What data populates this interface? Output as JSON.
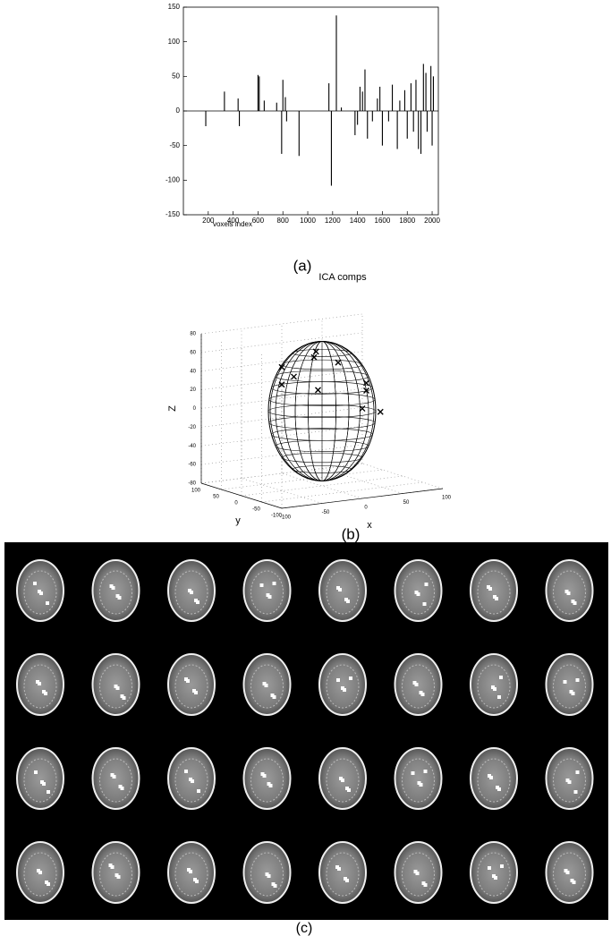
{
  "chart_data": [
    {
      "type": "stem",
      "caption": "(a)",
      "x_label": "voxels index",
      "color": "#000000",
      "x": [
        180,
        330,
        440,
        450,
        600,
        610,
        650,
        750,
        790,
        800,
        820,
        830,
        930,
        1170,
        1190,
        1230,
        1270,
        1380,
        1400,
        1420,
        1440,
        1460,
        1480,
        1520,
        1560,
        1580,
        1600,
        1650,
        1680,
        1720,
        1740,
        1780,
        1800,
        1830,
        1850,
        1870,
        1890,
        1910,
        1930,
        1950,
        1960,
        1990,
        2000,
        2010
      ],
      "values": [
        -22,
        28,
        18,
        -22,
        52,
        50,
        15,
        12,
        -62,
        45,
        20,
        -15,
        -65,
        40,
        -108,
        138,
        5,
        -35,
        -20,
        35,
        28,
        60,
        -40,
        -15,
        18,
        35,
        -50,
        -15,
        38,
        -55,
        15,
        30,
        -40,
        40,
        -30,
        45,
        -55,
        -62,
        68,
        55,
        -30,
        65,
        -50,
        50
      ],
      "xlim": [
        0,
        2050
      ],
      "ylim": [
        -150,
        150
      ],
      "xticks": [
        200,
        400,
        600,
        800,
        1000,
        1200,
        1400,
        1600,
        1800,
        2000
      ],
      "yticks": [
        -150,
        -100,
        -50,
        0,
        50,
        100,
        150
      ]
    },
    {
      "type": "scatter3d",
      "title": "ICA comps",
      "caption": "(b)",
      "x_label": "x",
      "y_label": "y",
      "z_label": "Z",
      "color": "#000000",
      "x": [
        -30,
        -20,
        0,
        20,
        -10,
        40,
        45,
        10,
        -40,
        30,
        50
      ],
      "y": [
        40,
        30,
        20,
        0,
        -10,
        -30,
        -20,
        35,
        20,
        -40,
        -45
      ],
      "z": [
        45,
        35,
        55,
        50,
        25,
        30,
        20,
        58,
        30,
        5,
        0
      ],
      "xlim": [
        -100,
        100
      ],
      "ylim": [
        -100,
        100
      ],
      "zlim": [
        -80,
        80
      ],
      "xticks": [
        -100,
        -50,
        0,
        50,
        100
      ],
      "yticks": [
        -100,
        -50,
        0,
        50,
        100
      ],
      "zticks": [
        -80,
        -60,
        -40,
        -20,
        0,
        20,
        40,
        60,
        80
      ]
    }
  ],
  "figure_c": {
    "caption": "(c)"
  }
}
